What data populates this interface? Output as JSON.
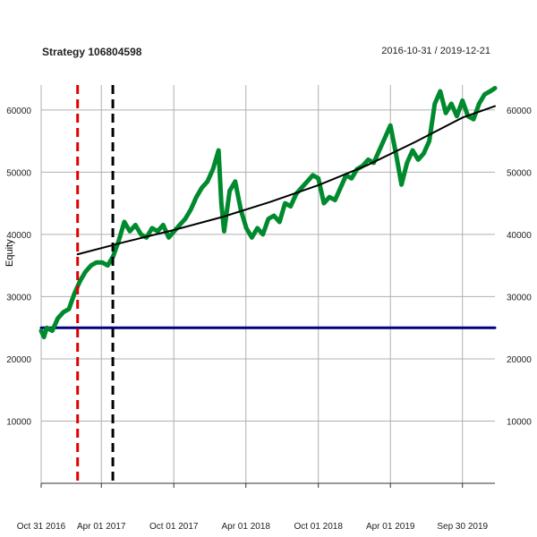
{
  "chart_data": {
    "type": "line",
    "title": "Strategy 106804598",
    "date_range": "2016-10-31 / 2019-12-21",
    "ylabel": "Equity",
    "xlabel": "",
    "ylim": [
      0,
      64000
    ],
    "xlim": [
      "2016-10-31",
      "2019-12-21"
    ],
    "grid": true,
    "y_ticks": [
      10000,
      20000,
      30000,
      40000,
      50000,
      60000
    ],
    "x_ticks": [
      {
        "date": "2016-10-31",
        "label": "Oct 31 2016"
      },
      {
        "date": "2017-04-01",
        "label": "Apr 01 2017"
      },
      {
        "date": "2017-10-01",
        "label": "Oct 01 2017"
      },
      {
        "date": "2018-04-01",
        "label": "Apr 01 2018"
      },
      {
        "date": "2018-10-01",
        "label": "Oct 01 2018"
      },
      {
        "date": "2019-04-01",
        "label": "Apr 01 2019"
      },
      {
        "date": "2019-09-30",
        "label": "Sep 30 2019"
      }
    ],
    "series": [
      {
        "role": "equity",
        "color": "#008a2e",
        "points": [
          [
            "2016-10-31",
            24500
          ],
          [
            "2016-11-07",
            23500
          ],
          [
            "2016-11-14",
            25000
          ],
          [
            "2016-11-28",
            24500
          ],
          [
            "2016-12-12",
            26500
          ],
          [
            "2016-12-26",
            27500
          ],
          [
            "2017-01-09",
            28000
          ],
          [
            "2017-01-23",
            30500
          ],
          [
            "2017-02-06",
            32500
          ],
          [
            "2017-02-20",
            34000
          ],
          [
            "2017-03-06",
            35000
          ],
          [
            "2017-03-20",
            35500
          ],
          [
            "2017-04-03",
            35500
          ],
          [
            "2017-04-17",
            35000
          ],
          [
            "2017-05-01",
            36500
          ],
          [
            "2017-05-15",
            39000
          ],
          [
            "2017-05-29",
            42000
          ],
          [
            "2017-06-12",
            40500
          ],
          [
            "2017-06-26",
            41500
          ],
          [
            "2017-07-10",
            40000
          ],
          [
            "2017-07-24",
            39500
          ],
          [
            "2017-08-07",
            41000
          ],
          [
            "2017-08-21",
            40500
          ],
          [
            "2017-09-04",
            41500
          ],
          [
            "2017-09-18",
            39500
          ],
          [
            "2017-10-02",
            40500
          ],
          [
            "2017-10-16",
            41500
          ],
          [
            "2017-10-30",
            42500
          ],
          [
            "2017-11-13",
            44000
          ],
          [
            "2017-11-27",
            46000
          ],
          [
            "2017-12-11",
            47500
          ],
          [
            "2017-12-25",
            48500
          ],
          [
            "2018-01-08",
            50500
          ],
          [
            "2018-01-22",
            53500
          ],
          [
            "2018-01-29",
            45000
          ],
          [
            "2018-02-05",
            40500
          ],
          [
            "2018-02-19",
            47000
          ],
          [
            "2018-03-05",
            48500
          ],
          [
            "2018-03-19",
            44000
          ],
          [
            "2018-04-02",
            41000
          ],
          [
            "2018-04-16",
            39500
          ],
          [
            "2018-04-30",
            41000
          ],
          [
            "2018-05-14",
            40000
          ],
          [
            "2018-05-28",
            42500
          ],
          [
            "2018-06-11",
            43000
          ],
          [
            "2018-06-25",
            42000
          ],
          [
            "2018-07-09",
            45000
          ],
          [
            "2018-07-23",
            44500
          ],
          [
            "2018-08-06",
            46500
          ],
          [
            "2018-08-20",
            47500
          ],
          [
            "2018-09-03",
            48500
          ],
          [
            "2018-09-17",
            49500
          ],
          [
            "2018-10-01",
            49000
          ],
          [
            "2018-10-15",
            45000
          ],
          [
            "2018-10-29",
            46000
          ],
          [
            "2018-11-12",
            45500
          ],
          [
            "2018-11-26",
            47500
          ],
          [
            "2018-12-10",
            49500
          ],
          [
            "2018-12-24",
            49000
          ],
          [
            "2019-01-07",
            50500
          ],
          [
            "2019-01-21",
            51000
          ],
          [
            "2019-02-04",
            52000
          ],
          [
            "2019-02-18",
            51500
          ],
          [
            "2019-03-04",
            53500
          ],
          [
            "2019-03-18",
            55500
          ],
          [
            "2019-04-01",
            57500
          ],
          [
            "2019-04-15",
            53000
          ],
          [
            "2019-04-29",
            48000
          ],
          [
            "2019-05-13",
            51500
          ],
          [
            "2019-05-27",
            53500
          ],
          [
            "2019-06-10",
            52000
          ],
          [
            "2019-06-24",
            53000
          ],
          [
            "2019-07-08",
            55000
          ],
          [
            "2019-07-22",
            61000
          ],
          [
            "2019-08-05",
            63000
          ],
          [
            "2019-08-19",
            59500
          ],
          [
            "2019-09-02",
            61000
          ],
          [
            "2019-09-16",
            59000
          ],
          [
            "2019-09-30",
            61500
          ],
          [
            "2019-10-14",
            59000
          ],
          [
            "2019-10-28",
            58500
          ],
          [
            "2019-11-11",
            61000
          ],
          [
            "2019-11-25",
            62500
          ],
          [
            "2019-12-09",
            63000
          ],
          [
            "2019-12-21",
            63500
          ]
        ]
      },
      {
        "role": "trend",
        "color": "#000000",
        "points": [
          [
            "2017-01-31",
            36800
          ],
          [
            "2017-06-01",
            38800
          ],
          [
            "2017-10-01",
            40700
          ],
          [
            "2018-02-01",
            42800
          ],
          [
            "2018-06-01",
            45200
          ],
          [
            "2018-10-01",
            47900
          ],
          [
            "2019-02-01",
            51100
          ],
          [
            "2019-06-01",
            54800
          ],
          [
            "2019-10-01",
            58800
          ],
          [
            "2019-12-21",
            60600
          ]
        ]
      },
      {
        "role": "baseline",
        "color": "#000080",
        "points": [
          [
            "2016-10-31",
            25000
          ],
          [
            "2019-12-21",
            25000
          ]
        ]
      }
    ],
    "vlines": [
      {
        "date": "2017-01-31",
        "color": "#e00000"
      },
      {
        "date": "2017-04-30",
        "color": "#000000"
      }
    ]
  }
}
